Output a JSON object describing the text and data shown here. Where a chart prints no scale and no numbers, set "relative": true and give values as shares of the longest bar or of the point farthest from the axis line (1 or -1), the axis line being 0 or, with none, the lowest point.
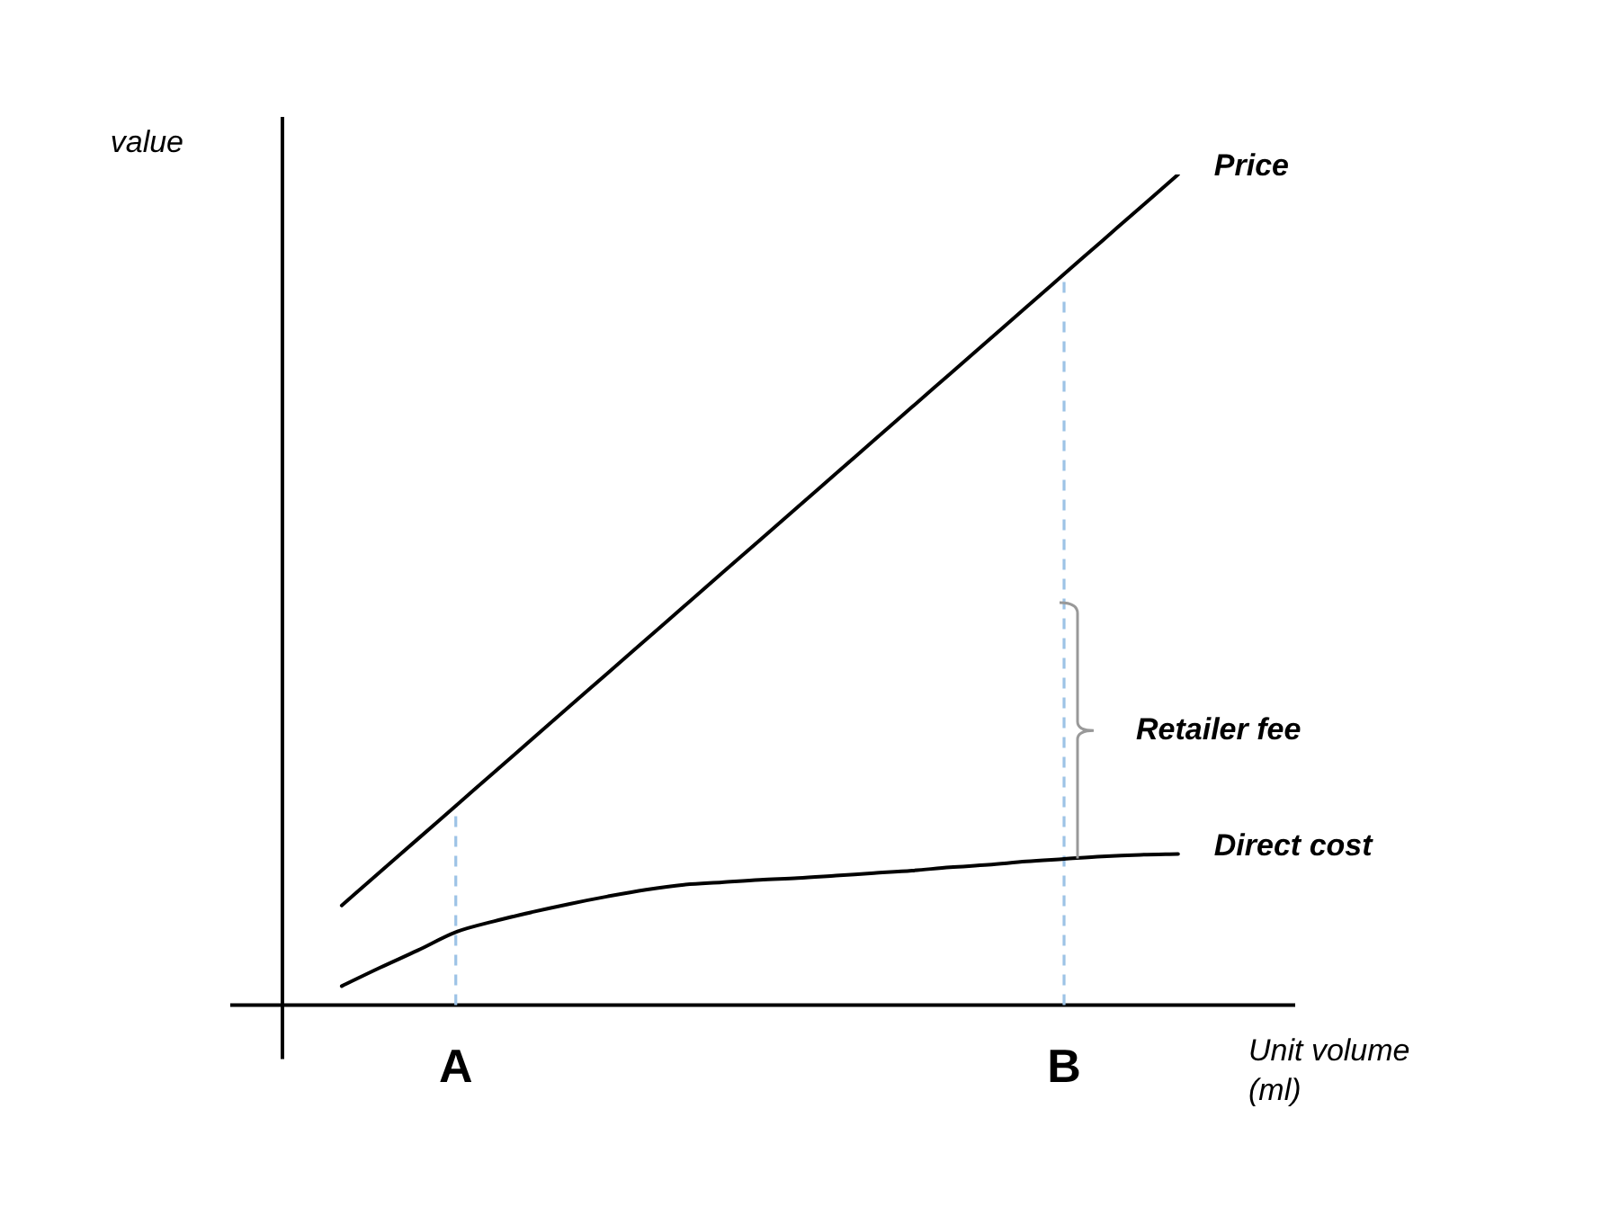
{
  "chart_data": {
    "type": "line",
    "relative": true,
    "ylabel": "value",
    "xlabel": "Unit volume (ml)",
    "categories": [
      null,
      null,
      null,
      "A",
      null,
      null,
      null,
      null,
      null,
      null,
      null,
      null,
      null,
      null,
      null,
      null,
      null,
      null,
      null,
      "B",
      null,
      null,
      null
    ],
    "series": [
      {
        "name": "Price",
        "color": "#000000",
        "values": [
          0.12,
          0.16,
          0.2,
          0.24,
          0.28,
          0.32,
          0.36,
          0.4,
          0.44,
          0.48,
          0.52,
          0.56,
          0.6,
          0.64,
          0.68,
          0.72,
          0.76,
          0.8,
          0.84,
          0.88,
          0.92,
          0.96,
          1
        ]
      },
      {
        "name": "Direct cost",
        "color": "#000000",
        "values": [
          0.023,
          0.045,
          0.066,
          0.088,
          0.101,
          0.112,
          0.122,
          0.131,
          0.139,
          0.145,
          0.148,
          0.151,
          0.153,
          0.156,
          0.159,
          0.162,
          0.166,
          0.169,
          0.173,
          0.176,
          0.179,
          0.181,
          0.182
        ]
      }
    ],
    "ref_lines": [
      {
        "axis": "x",
        "value": "A",
        "color": "#9dc3e6",
        "line_style": "dashed"
      },
      {
        "axis": "x",
        "value": "B",
        "color": "#9dc3e6",
        "line_style": "dashed"
      }
    ],
    "annotations": [
      {
        "text": "Retailer fee",
        "x": "B",
        "y": 0.33
      }
    ]
  }
}
